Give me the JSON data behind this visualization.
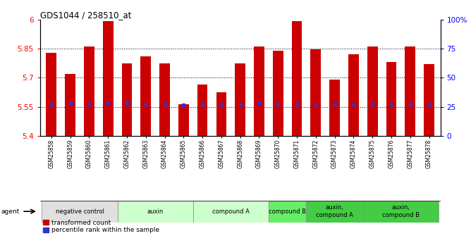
{
  "title": "GDS1044 / 258510_at",
  "samples": [
    "GSM25858",
    "GSM25859",
    "GSM25860",
    "GSM25861",
    "GSM25862",
    "GSM25863",
    "GSM25864",
    "GSM25865",
    "GSM25866",
    "GSM25867",
    "GSM25868",
    "GSM25869",
    "GSM25870",
    "GSM25871",
    "GSM25872",
    "GSM25873",
    "GSM25874",
    "GSM25875",
    "GSM25876",
    "GSM25877",
    "GSM25878"
  ],
  "bar_values": [
    5.83,
    5.72,
    5.86,
    5.99,
    5.775,
    5.81,
    5.775,
    5.565,
    5.665,
    5.625,
    5.775,
    5.86,
    5.84,
    5.99,
    5.845,
    5.69,
    5.82,
    5.86,
    5.78,
    5.86,
    5.77
  ],
  "percentile_values": [
    5.565,
    5.57,
    5.565,
    5.57,
    5.57,
    5.565,
    5.565,
    5.56,
    5.565,
    5.565,
    5.565,
    5.57,
    5.565,
    5.565,
    5.565,
    5.565,
    5.565,
    5.565,
    5.565,
    5.565,
    5.565
  ],
  "ylim_left": [
    5.4,
    6.0
  ],
  "ylim_right": [
    0,
    100
  ],
  "yticks_left": [
    5.4,
    5.55,
    5.7,
    5.85,
    6.0
  ],
  "ytick_labels_left": [
    "5.4",
    "5.55",
    "5.7",
    "5.85",
    "6"
  ],
  "yticks_right": [
    0,
    25,
    50,
    75,
    100
  ],
  "ytick_labels_right": [
    "0",
    "25",
    "50",
    "75",
    "100%"
  ],
  "hlines": [
    5.55,
    5.7,
    5.85
  ],
  "bar_color": "#cc0000",
  "dot_color": "#3333cc",
  "agent_groups": [
    {
      "label": "negative control",
      "start": 0,
      "end": 3,
      "color": "#e0e0e0"
    },
    {
      "label": "auxin",
      "start": 4,
      "end": 7,
      "color": "#ccffcc"
    },
    {
      "label": "compound A",
      "start": 8,
      "end": 11,
      "color": "#ccffcc"
    },
    {
      "label": "compound B",
      "start": 12,
      "end": 13,
      "color": "#66ee66"
    },
    {
      "label": "auxin,\ncompound A",
      "start": 14,
      "end": 16,
      "color": "#44cc44"
    },
    {
      "label": "auxin,\ncompound B",
      "start": 17,
      "end": 20,
      "color": "#44cc44"
    }
  ],
  "legend_red": "transformed count",
  "legend_blue": "percentile rank within the sample",
  "fig_width": 6.68,
  "fig_height": 3.45,
  "dpi": 100
}
